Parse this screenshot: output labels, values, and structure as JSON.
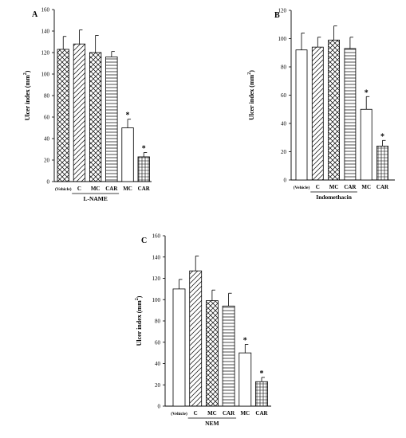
{
  "figure": {
    "chart_data": [
      {
        "type": "bar",
        "panel_label": "A",
        "categories": [
          "(Vehicle)",
          "C",
          "MC",
          "CAR",
          "MC",
          "CAR"
        ],
        "values": [
          123,
          128,
          120,
          116,
          50,
          23
        ],
        "errors": [
          12,
          13,
          16,
          5,
          8,
          4
        ],
        "significant": [
          false,
          false,
          false,
          false,
          true,
          true
        ],
        "patterns": [
          "crosshatch",
          "diagonal",
          "crosshatch",
          "horizontal",
          "empty",
          "grid"
        ],
        "significance_marker": "*",
        "ylabel": "Ulcer index (mm",
        "ylabel_sup": "2",
        "ylabel_close": ")",
        "group_label": "L-NAME",
        "group_span": [
          1,
          3
        ],
        "ylim": [
          0,
          160
        ],
        "yticks": [
          "0",
          "20",
          "40",
          "60",
          "80",
          "100",
          "120",
          "140",
          "160"
        ]
      },
      {
        "type": "bar",
        "panel_label": "B",
        "categories": [
          "(Vehicle)",
          "C",
          "MC",
          "CAR",
          "MC",
          "CAR"
        ],
        "values": [
          92,
          94,
          99,
          93,
          50,
          24
        ],
        "errors": [
          12,
          7,
          10,
          8,
          9,
          4
        ],
        "significant": [
          false,
          false,
          false,
          false,
          true,
          true
        ],
        "patterns": [
          "empty",
          "diagonal",
          "crosshatch",
          "horizontal",
          "empty",
          "grid"
        ],
        "significance_marker": "*",
        "ylabel": "Ulcer index (mm",
        "ylabel_sup": "2",
        "ylabel_close": ")",
        "group_label": "Indomethacin",
        "group_span": [
          1,
          3
        ],
        "ylim": [
          0,
          120
        ],
        "yticks": [
          "0",
          "20",
          "40",
          "60",
          "80",
          "100",
          "120"
        ]
      },
      {
        "type": "bar",
        "panel_label": "C",
        "categories": [
          "(Vehicle)",
          "C",
          "MC",
          "CAR",
          "MC",
          "CAR"
        ],
        "values": [
          110,
          127,
          99,
          94,
          50,
          23
        ],
        "errors": [
          9,
          14,
          10,
          12,
          8,
          4
        ],
        "significant": [
          false,
          false,
          false,
          false,
          true,
          true
        ],
        "patterns": [
          "empty",
          "diagonal",
          "crosshatch",
          "horizontal",
          "empty",
          "grid"
        ],
        "significance_marker": "*",
        "ylabel": "Ulcer index (mm",
        "ylabel_sup": "2",
        "ylabel_close": ")",
        "group_label": "NEM",
        "group_span": [
          1,
          3
        ],
        "ylim": [
          0,
          160
        ],
        "yticks": [
          "0",
          "20",
          "40",
          "60",
          "80",
          "100",
          "120",
          "140",
          "160"
        ]
      }
    ]
  }
}
